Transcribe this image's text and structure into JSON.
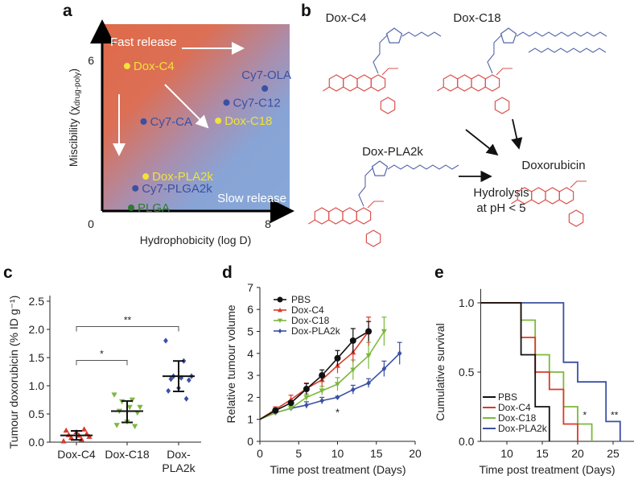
{
  "panels": {
    "a": "a",
    "b": "b",
    "c": "c",
    "d": "d",
    "e": "e"
  },
  "colors": {
    "red": "#d93a2b",
    "green": "#7cb83e",
    "blue": "#3a50a3",
    "black": "#111111",
    "yellow": "#f2e23a",
    "plga": "#2f7a30",
    "structure_red": "#d9534f",
    "structure_blue": "#5566aa"
  },
  "panel_b": {
    "labels": {
      "dox_c4": "Dox-C4",
      "dox_c18": "Dox-C18",
      "dox_pla2k": "Dox-PLA2k",
      "doxorubicin": "Doxorubicin",
      "hydrolysis_line1": "Hydrolysis",
      "hydrolysis_line2": "at pH < 5"
    }
  },
  "chart_data": [
    {
      "id": "a",
      "type": "scatter",
      "xlabel": "Hydrophobicity (log D)",
      "ylabel_main": "Miscibility (χ",
      "ylabel_sub": "drug-poly",
      "ylabel_end": ")",
      "xticks": [
        "0",
        "8"
      ],
      "yticks": [
        "6"
      ],
      "xlim": [
        0,
        8.9
      ],
      "ylim": [
        0,
        7.4
      ],
      "annotations": {
        "fast": "Fast release",
        "slow": "Slow release"
      },
      "points": [
        {
          "label": "Dox-C4",
          "x": 1.2,
          "y": 5.75,
          "color": "yellow"
        },
        {
          "label": "Cy7-OLA",
          "x": 7.85,
          "y": 4.86,
          "color": "blue"
        },
        {
          "label": "Cy7-C12",
          "x": 6.0,
          "y": 4.3,
          "color": "blue"
        },
        {
          "label": "Dox-C18",
          "x": 5.6,
          "y": 3.58,
          "color": "yellow"
        },
        {
          "label": "Cy7-CA",
          "x": 2.0,
          "y": 3.55,
          "color": "blue"
        },
        {
          "label": "Dox-PLA2k",
          "x": 2.1,
          "y": 1.37,
          "color": "yellow"
        },
        {
          "label": "Cy7-PLGA2k",
          "x": 1.6,
          "y": 0.9,
          "color": "blue"
        },
        {
          "label": "PLGA",
          "x": 1.4,
          "y": 0.13,
          "color": "plga"
        }
      ]
    },
    {
      "id": "c",
      "type": "scatter",
      "ylabel": "Tumour doxorubicin (% ID g⁻¹)",
      "ylim": [
        0,
        2.5
      ],
      "yticks": [
        "0.0",
        "0.5",
        "1.0",
        "1.5",
        "2.0",
        "2.5"
      ],
      "categories": [
        [
          "Dox-C4"
        ],
        [
          "Dox-C18"
        ],
        [
          "Dox-",
          "PLA2k"
        ]
      ],
      "groups": [
        {
          "name": "Dox-C4",
          "color": "red",
          "marker": "triangle-up",
          "values": [
            0.02,
            0.05,
            0.08,
            0.1,
            0.12,
            0.13,
            0.15,
            0.18,
            0.21,
            0.23
          ],
          "mean": 0.12,
          "sd_low": 0.04,
          "sd_high": 0.2
        },
        {
          "name": "Dox-C18",
          "color": "green",
          "marker": "triangle-down",
          "values": [
            0.84,
            0.75,
            0.72,
            0.62,
            0.62,
            0.55,
            0.52,
            0.36,
            0.3,
            0.28
          ],
          "mean": 0.55,
          "sd_low": 0.35,
          "sd_high": 0.73
        },
        {
          "name": "Dox-PLA2k",
          "color": "blue",
          "marker": "diamond",
          "values": [
            1.8,
            1.44,
            1.17,
            1.17,
            1.14,
            1.12,
            1.1,
            0.96,
            0.91,
            0.77
          ],
          "mean": 1.17,
          "sd_low": 0.9,
          "sd_high": 1.44
        }
      ],
      "significance": [
        {
          "from": 0,
          "to": 1,
          "y": 1.45,
          "label": "*"
        },
        {
          "from": 0,
          "to": 2,
          "y": 2.05,
          "label": "**"
        }
      ]
    },
    {
      "id": "d",
      "type": "line",
      "xlabel": "Time post treatment (Days)",
      "ylabel": "Relative tumour volume",
      "xlim": [
        0,
        20
      ],
      "ylim": [
        0,
        7
      ],
      "xticks": [
        "0",
        "5",
        "10",
        "15",
        "20"
      ],
      "yticks": [
        "0",
        "1",
        "2",
        "3",
        "4",
        "5",
        "6",
        "7"
      ],
      "series": [
        {
          "name": "PBS",
          "color": "black",
          "marker": "circle",
          "x": [
            0,
            2,
            4,
            6,
            8,
            10,
            12,
            14
          ],
          "y": [
            1,
            1.4,
            1.75,
            2.38,
            3.0,
            3.78,
            4.58,
            5.0
          ],
          "err": [
            0,
            0.1,
            0.1,
            0.25,
            0.25,
            0.35,
            0.55,
            0.45
          ]
        },
        {
          "name": "Dox-C4",
          "color": "red",
          "marker": "triangle-up",
          "x": [
            0,
            2,
            4,
            6,
            8,
            10,
            12,
            14
          ],
          "y": [
            1,
            1.45,
            1.9,
            2.4,
            2.8,
            3.45,
            4.05,
            5.0
          ],
          "err": [
            0,
            0.12,
            0.2,
            0.25,
            0.3,
            0.35,
            0.45,
            0.65
          ]
        },
        {
          "name": "Dox-C18",
          "color": "green",
          "marker": "triangle-down",
          "x": [
            0,
            2,
            4,
            6,
            8,
            10,
            12,
            14,
            16
          ],
          "y": [
            1,
            1.3,
            1.5,
            2.0,
            2.3,
            2.6,
            3.25,
            3.9,
            5.0
          ],
          "err": [
            0,
            0.1,
            0.1,
            0.15,
            0.2,
            0.3,
            0.45,
            0.6,
            0.65
          ]
        },
        {
          "name": "Dox-PLA2k",
          "color": "blue",
          "marker": "diamond",
          "x": [
            0,
            2,
            4,
            6,
            8,
            10,
            12,
            14,
            16,
            18
          ],
          "y": [
            1,
            1.3,
            1.5,
            1.65,
            1.85,
            2.0,
            2.35,
            2.65,
            3.3,
            4.0
          ],
          "err": [
            0,
            0.1,
            0.1,
            0.15,
            0.15,
            0.05,
            0.2,
            0.2,
            0.35,
            0.5
          ]
        }
      ],
      "annotations": [
        {
          "x": 10,
          "y": 1.3,
          "label": "*"
        }
      ],
      "legend": "top-left"
    },
    {
      "id": "e",
      "type": "line",
      "subtype": "step",
      "xlabel": "Time post treatment (Days)",
      "ylabel": "Cumulative survival",
      "xlim": [
        6.3,
        27.2
      ],
      "ylim": [
        0,
        1.1
      ],
      "xticks": [
        "10",
        "15",
        "20",
        "25"
      ],
      "yticks": [
        "0.0",
        "0.5",
        "1.0"
      ],
      "series": [
        {
          "name": "PBS",
          "color": "black",
          "x": [
            6.3,
            12,
            14,
            16
          ],
          "y": [
            1,
            0.625,
            0.25,
            0
          ]
        },
        {
          "name": "Dox-C4",
          "color": "red",
          "x": [
            6.3,
            12,
            14,
            16,
            18,
            20
          ],
          "y": [
            1,
            0.75,
            0.5,
            0.375,
            0.125,
            0
          ]
        },
        {
          "name": "Dox-C18",
          "color": "green",
          "x": [
            6.3,
            12,
            14,
            16,
            18,
            20,
            22
          ],
          "y": [
            1,
            0.875,
            0.625,
            0.5,
            0.25,
            0.125,
            0
          ]
        },
        {
          "name": "Dox-PLA2k",
          "color": "blue",
          "x": [
            6.3,
            18,
            20,
            24,
            26
          ],
          "y": [
            1,
            0.571,
            0.429,
            0.143,
            0
          ]
        }
      ],
      "annotations": [
        {
          "x": 21,
          "y": 0.19,
          "label": "*"
        },
        {
          "x": 25.2,
          "y": 0.19,
          "label": "**"
        }
      ],
      "legend": "bottom-left"
    }
  ]
}
